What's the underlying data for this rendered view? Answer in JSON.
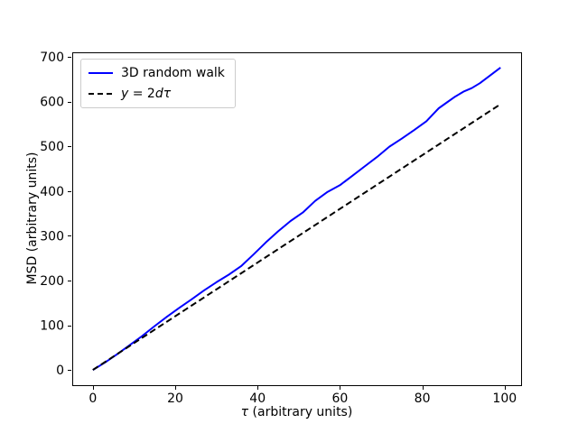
{
  "figure": {
    "background": "#ffffff",
    "axis_color": "#000000",
    "text_color": "#000000"
  },
  "chart_data": {
    "type": "line",
    "title": "",
    "xlabel": "τ (arbitrary units)",
    "xlabel_math": "τ",
    "xlabel_rest": " (arbitrary units)",
    "ylabel": "MSD (arbitrary units)",
    "xlim": [
      -5,
      104
    ],
    "ylim": [
      -34,
      710
    ],
    "xticks": [
      0,
      20,
      40,
      60,
      80,
      100
    ],
    "yticks": [
      0,
      100,
      200,
      300,
      400,
      500,
      600,
      700
    ],
    "grid": false,
    "legend_position": "upper left",
    "series": [
      {
        "name": "3D random walk",
        "color": "#0000ff",
        "style": "solid",
        "linewidth": 2,
        "label_segments": [
          {
            "text": "3D random walk",
            "italic": false
          }
        ],
        "x": [
          0,
          3,
          6,
          9,
          12,
          15,
          18,
          21,
          24,
          27,
          30,
          33,
          36,
          39,
          42,
          45,
          48,
          51,
          54,
          57,
          60,
          63,
          66,
          69,
          72,
          75,
          78,
          81,
          84,
          86,
          88,
          90,
          92,
          94,
          96,
          99
        ],
        "y": [
          0,
          17,
          36,
          56,
          76,
          98,
          119,
          139,
          158,
          178,
          196,
          213,
          232,
          258,
          285,
          310,
          333,
          352,
          378,
          398,
          413,
          434,
          455,
          476,
          499,
          517,
          536,
          556,
          585,
          598,
          611,
          622,
          630,
          641,
          655,
          676
        ]
      },
      {
        "name": "y = 2dτ",
        "color": "#000000",
        "style": "dashed",
        "linewidth": 2,
        "label_segments": [
          {
            "text": "y",
            "italic": true
          },
          {
            "text": " = 2",
            "italic": false
          },
          {
            "text": "d",
            "italic": true
          },
          {
            "text": "τ",
            "italic": true
          }
        ],
        "x": [
          0,
          99
        ],
        "y": [
          0,
          594
        ]
      }
    ]
  }
}
